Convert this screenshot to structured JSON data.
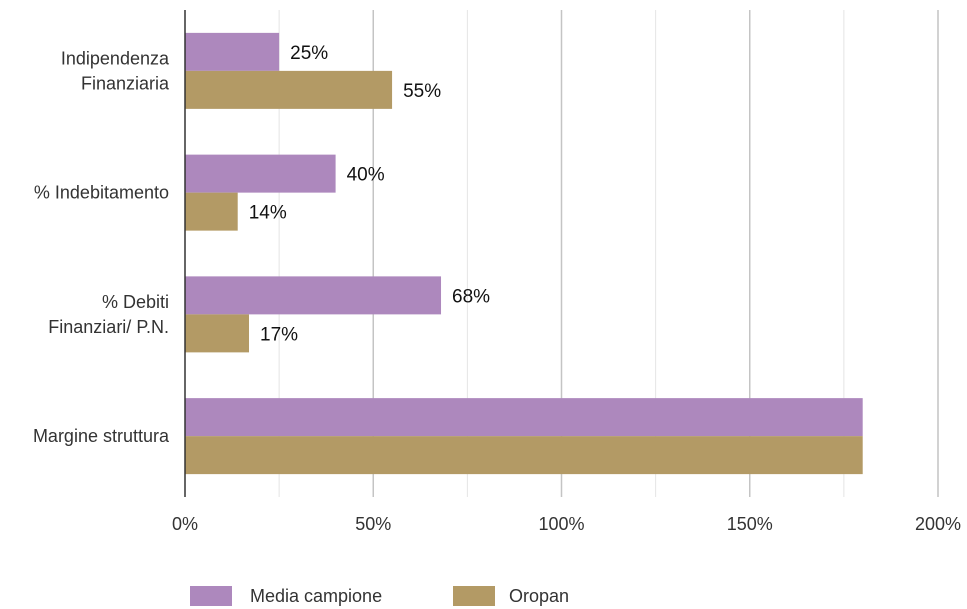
{
  "chart_data": {
    "type": "bar",
    "orientation": "horizontal",
    "categories": [
      [
        "Indipendenza",
        "Finanziaria"
      ],
      [
        "% Indebitamento"
      ],
      [
        "% Debiti ",
        "Finanziari/ P.N."
      ],
      [
        "Margine struttura"
      ]
    ],
    "series": [
      {
        "name": "Media campione",
        "color": "#ad88bd",
        "values": [
          25,
          40,
          68,
          180
        ],
        "labels": [
          "25%",
          "40%",
          "68%",
          ""
        ]
      },
      {
        "name": "Oropan",
        "color": "#b39a65",
        "values": [
          55,
          14,
          17,
          180
        ],
        "labels": [
          "55%",
          "14%",
          "17%",
          ""
        ]
      }
    ],
    "xlim": [
      0,
      200
    ],
    "x_ticks": [
      0,
      50,
      100,
      150,
      200
    ],
    "x_tick_labels": [
      "0%",
      "50%",
      "100%",
      "150%",
      "200%"
    ],
    "grid": {
      "vertical": true,
      "minor_step": 25
    },
    "legend": {
      "placement": "bottom"
    },
    "title": "",
    "xlabel": "",
    "ylabel": ""
  }
}
